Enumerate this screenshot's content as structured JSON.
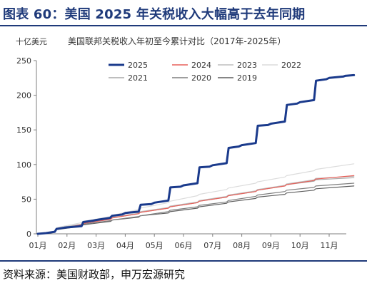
{
  "header": {
    "title": "图表 60：美国 2025 年关税收入大幅高于去年同期"
  },
  "chart_data": {
    "type": "line",
    "title": "美国联邦关税收入年初至今累计对比（2017年-2025年）",
    "unit_label": "十亿美元",
    "xlabel": "",
    "ylabel": "十亿美元",
    "x_tick_labels": [
      "01月",
      "02月",
      "03月",
      "04月",
      "05月",
      "06月",
      "07月",
      "08月",
      "09月",
      "10月",
      "11月"
    ],
    "y_ticks": [
      0,
      50,
      100,
      150,
      200,
      250
    ],
    "ylim": [
      0,
      250
    ],
    "xlim": [
      0,
      10.85
    ],
    "grid": false,
    "legend_position": "top",
    "series": [
      {
        "name": "2025",
        "color": "#1a3a8c",
        "width": 3,
        "x": [
          0,
          0.28,
          0.58,
          0.64,
          0.92,
          1.5,
          1.56,
          1.9,
          2.0,
          2.48,
          2.55,
          2.9,
          3.0,
          3.46,
          3.53,
          3.9,
          4.0,
          4.48,
          4.55,
          4.9,
          5.0,
          5.48,
          5.55,
          5.9,
          6.0,
          6.48,
          6.55,
          6.9,
          7.0,
          7.48,
          7.55,
          7.9,
          8.0,
          8.48,
          8.55,
          8.9,
          9.0,
          9.48,
          9.55,
          9.9,
          10.0,
          10.48,
          10.55,
          10.85
        ],
        "y": [
          0,
          1,
          3,
          7,
          9,
          11,
          17,
          19,
          20,
          23,
          26,
          28,
          30,
          32,
          42,
          43,
          45,
          48,
          67,
          68,
          70,
          73,
          96,
          97,
          99,
          102,
          124,
          126,
          128,
          131,
          156,
          157,
          159,
          162,
          186,
          188,
          190,
          193,
          221,
          223,
          225,
          227,
          228,
          229
        ]
      },
      {
        "name": "2024",
        "color": "#e8615a",
        "width": 1.2,
        "x": [
          0,
          0.28,
          0.58,
          0.64,
          1.5,
          1.56,
          2.5,
          2.56,
          3.46,
          3.52,
          4.48,
          4.54,
          5.48,
          5.54,
          6.48,
          6.54,
          7.48,
          7.54,
          8.48,
          8.54,
          9.48,
          9.54,
          10.85
        ],
        "y": [
          0,
          1,
          3,
          7,
          13,
          15,
          21,
          23,
          29,
          31,
          37,
          39,
          45,
          47,
          53,
          55,
          61,
          63,
          69,
          71,
          77,
          79,
          84
        ]
      },
      {
        "name": "2023",
        "color": "#bdbdbd",
        "width": 1.2,
        "x": [
          0,
          0.28,
          0.58,
          0.64,
          1.5,
          1.56,
          2.5,
          2.56,
          3.46,
          3.52,
          4.48,
          4.54,
          5.48,
          5.54,
          6.48,
          6.54,
          7.48,
          7.54,
          8.48,
          8.54,
          9.48,
          9.54,
          10.85
        ],
        "y": [
          0,
          1,
          3,
          8,
          14,
          16,
          22,
          24,
          30,
          32,
          38,
          40,
          46,
          48,
          54,
          56,
          62,
          64,
          70,
          72,
          78,
          80,
          83
        ]
      },
      {
        "name": "2022",
        "color": "#dcdcdc",
        "width": 1.2,
        "x": [
          0,
          0.28,
          0.58,
          0.64,
          1.5,
          1.56,
          2.5,
          2.56,
          3.46,
          3.52,
          4.48,
          4.54,
          5.48,
          5.54,
          6.48,
          6.54,
          7.48,
          7.54,
          8.48,
          8.54,
          9.48,
          9.54,
          10.85
        ],
        "y": [
          0,
          1,
          3,
          9,
          16,
          18,
          25,
          27,
          35,
          37,
          45,
          47,
          55,
          57,
          64,
          66,
          73,
          75,
          82,
          84,
          91,
          93,
          101
        ]
      },
      {
        "name": "2021",
        "color": "#a8a8a8",
        "width": 1.2,
        "x": [
          0,
          0.28,
          0.58,
          0.64,
          1.5,
          1.56,
          2.5,
          2.56,
          3.46,
          3.52,
          4.48,
          4.54,
          5.48,
          5.54,
          6.48,
          6.54,
          7.48,
          7.54,
          8.48,
          8.54,
          9.48,
          9.54,
          10.85
        ],
        "y": [
          0,
          1,
          3,
          8,
          14,
          16,
          22,
          23,
          29,
          31,
          37,
          39,
          45,
          47,
          53,
          55,
          61,
          63,
          69,
          71,
          76,
          78,
          81
        ]
      },
      {
        "name": "2020",
        "color": "#7f7f7f",
        "width": 1.2,
        "x": [
          0,
          0.28,
          0.58,
          0.64,
          1.5,
          1.56,
          2.5,
          2.56,
          3.46,
          3.52,
          4.48,
          4.54,
          5.48,
          5.54,
          6.48,
          6.54,
          7.48,
          7.54,
          8.48,
          8.54,
          9.48,
          9.54,
          10.85
        ],
        "y": [
          0,
          1,
          3,
          7,
          13,
          14,
          19,
          20,
          25,
          26,
          32,
          34,
          39,
          41,
          46,
          48,
          54,
          56,
          61,
          63,
          67,
          69,
          73
        ]
      },
      {
        "name": "2019",
        "color": "#5f5f5f",
        "width": 1.2,
        "x": [
          0,
          0.28,
          0.58,
          0.64,
          1.5,
          1.56,
          2.5,
          2.56,
          3.46,
          3.52,
          4.48,
          4.54,
          5.48,
          5.54,
          6.48,
          6.54,
          7.48,
          7.54,
          8.48,
          8.54,
          9.48,
          9.54,
          10.85
        ],
        "y": [
          0,
          1,
          3,
          6,
          11,
          13,
          18,
          20,
          24,
          26,
          30,
          32,
          37,
          39,
          44,
          46,
          51,
          53,
          57,
          59,
          63,
          65,
          69
        ]
      }
    ]
  },
  "footer": {
    "source": "资料来源：美国财政部，申万宏源研究"
  }
}
